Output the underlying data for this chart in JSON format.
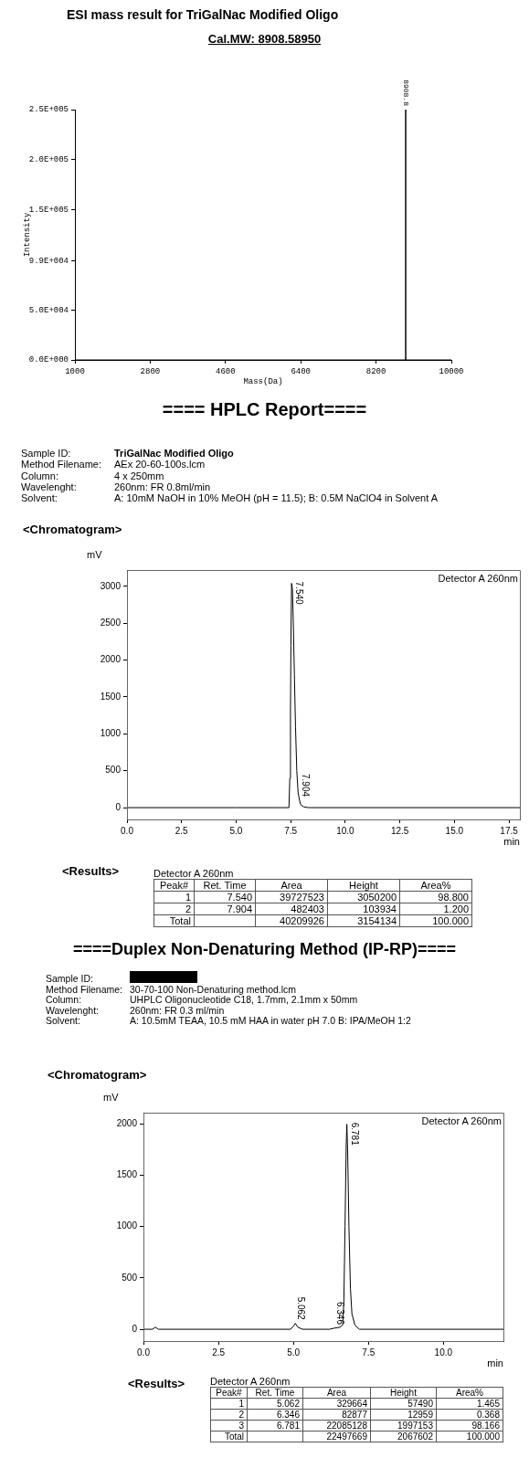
{
  "chart_data": [
    {
      "type": "line",
      "title": "ESI mass result for TriGalNac Modified Oligo",
      "subtitle": "Cal.MW: 8908.58950",
      "xlabel": "Mass(Da)",
      "ylabel": "Intensity",
      "x": [
        1000,
        8908.8,
        8908.8,
        8908.8,
        10000
      ],
      "series": [
        {
          "color": "#000000",
          "values": [
            0,
            0,
            250000,
            0,
            0
          ]
        }
      ],
      "xlim": [
        1000,
        10000
      ],
      "xticks": [
        1000,
        2800,
        4600,
        6400,
        8200,
        10000
      ],
      "ylim": [
        0,
        250000
      ],
      "yticks": [
        {
          "value": 0,
          "label": "0.0E+000"
        },
        {
          "value": 50000,
          "label": "5.0E+004"
        },
        {
          "value": 99000,
          "label": "9.9E+004"
        },
        {
          "value": 150000,
          "label": "1.5E+005"
        },
        {
          "value": 200000,
          "label": "2.0E+005"
        },
        {
          "value": 250000,
          "label": "2.5E+005"
        }
      ],
      "annotations": [
        {
          "text": "8908.8",
          "x": 8908.8,
          "y": 250000
        }
      ],
      "legend": false,
      "marker": "none",
      "line_style": "solid"
    },
    {
      "type": "line",
      "title": "==== HPLC Report====",
      "xlabel": "min",
      "ylabel": "mV",
      "x": [
        0,
        5,
        7.0,
        7.42,
        7.46,
        7.49,
        7.51,
        7.54,
        7.58,
        7.62,
        7.67,
        7.72,
        7.78,
        7.84,
        7.904,
        7.96,
        8.1,
        8.3,
        18
      ],
      "series": [
        {
          "color": "#000000",
          "values": [
            0,
            0,
            0,
            0,
            400,
            1300,
            2200,
            3040,
            2960,
            2500,
            1800,
            1100,
            500,
            200,
            100,
            40,
            10,
            0,
            0
          ]
        }
      ],
      "xlim": [
        0,
        18
      ],
      "xticks": [
        {
          "value": 0,
          "label": "0.0"
        },
        {
          "value": 2.5,
          "label": "2.5"
        },
        {
          "value": 5,
          "label": "5.0"
        },
        {
          "value": 7.5,
          "label": "7.5"
        },
        {
          "value": 10,
          "label": "10.0"
        },
        {
          "value": 12.5,
          "label": "12.5"
        },
        {
          "value": 15,
          "label": "15.0"
        },
        {
          "value": 17.5,
          "label": "17.5"
        }
      ],
      "ylim": [
        -160,
        3220
      ],
      "yticks": [
        0,
        500,
        1000,
        1500,
        2000,
        2500,
        3000
      ],
      "annotations": [
        "Sample ID: TriGalNac Modified Oligo",
        "Method Filename: AEx 20-60-100s.lcm",
        "Column: 4 x 250mm",
        "Wavelenght: 260nm: FR 0.8ml/min",
        "Solvent: A: 10mM NaOH in 10% MeOH (pH = 11.5); B: 0.5M NaClO4 in Solvent A",
        "<Chromatogram>",
        "Detector A 260nm",
        {
          "text": "7.540",
          "x": 7.54,
          "y": 3040
        },
        {
          "text": "7.904",
          "x": 7.904,
          "y": 100
        },
        "<Results>",
        "Detector A 260nm",
        "Peak#  Ret. Time  Area  Height  Area%",
        "1  7.540  39727523  3050200  98.800",
        "2  7.904  482403  103934  1.200",
        "Total  40209926  3154134  100.000"
      ],
      "legend": false,
      "marker": "none",
      "line_style": "solid"
    },
    {
      "type": "line",
      "title": "====Duplex Non-Denaturing Method (IP-RP)====",
      "xlabel": "min",
      "ylabel": "mV",
      "x": [
        0,
        0.3,
        0.4,
        0.5,
        0.7,
        4.9,
        5.0,
        5.062,
        5.15,
        5.3,
        6.2,
        6.346,
        6.55,
        6.64,
        6.68,
        6.72,
        6.76,
        6.781,
        6.81,
        6.85,
        6.9,
        6.95,
        7.05,
        7.2,
        7.4,
        12
      ],
      "series": [
        {
          "color": "#000000",
          "values": [
            0,
            0,
            20,
            0,
            0,
            0,
            30,
            57,
            20,
            0,
            0,
            10,
            20,
            40,
            250,
            1000,
            1800,
            1997,
            1700,
            1000,
            400,
            150,
            40,
            0,
            0,
            0
          ]
        }
      ],
      "xlim": [
        0,
        12
      ],
      "xticks": [
        {
          "value": 0,
          "label": "0.0"
        },
        {
          "value": 2.5,
          "label": "2.5"
        },
        {
          "value": 5,
          "label": "5.0"
        },
        {
          "value": 7.5,
          "label": "7.5"
        },
        {
          "value": 10,
          "label": "10.0"
        }
      ],
      "ylim": [
        -115,
        2110
      ],
      "yticks": [
        0,
        500,
        1000,
        1500,
        2000
      ],
      "annotations": [
        "Sample ID:",
        "Method Filename: 30-70-100 Non-Denaturing method.lcm",
        "Column: UHPLC Oligonucleotide C18, 1.7mm, 2.1mm x 50mm",
        "Wavelenght: 260nm: FR 0.3 ml/min",
        "Solvent: A: 10.5mM TEAA, 10.5 mM HAA in water pH 7.0  B: IPA/MeOH 1:2",
        "<Chromatogram>",
        "Detector A 260nm",
        {
          "text": "5.062",
          "x": 5.062,
          "y": 57
        },
        {
          "text": "6.346",
          "x": 6.346,
          "y": 10
        },
        {
          "text": "6.781",
          "x": 6.781,
          "y": 1997
        },
        "<Results>",
        "Detector A 260nm",
        "Peak#  Ret. Time  Area  Height  Area%",
        "1  5.062  329664  57490  1.465",
        "2  6.346  82877  12959  0.368",
        "3  6.781  22085128  1997153  98.166",
        "Total  22497669  2067602  100.000"
      ],
      "legend": false,
      "marker": "none",
      "line_style": "solid"
    }
  ]
}
